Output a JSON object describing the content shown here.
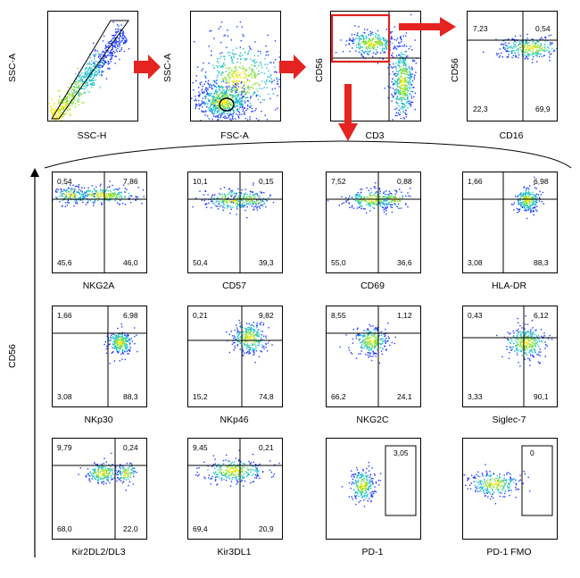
{
  "colors": {
    "density_low": "#1f3cff",
    "density_mid": "#22c3c9",
    "density_high": "#8ee03c",
    "density_peak": "#ffea00",
    "red_arrow": "#e52320",
    "gate_red": "#e02020"
  },
  "top_row": [
    {
      "xlabel": "SSC-H",
      "ylabel": "SSC-A"
    },
    {
      "xlabel": "FSC-A",
      "ylabel": "SSC-A"
    },
    {
      "xlabel": "CD3",
      "ylabel": "CD56"
    },
    {
      "xlabel": "CD16",
      "ylabel": "CD56",
      "quadrants": [
        "7,23",
        "0,54",
        "22,3",
        "69,9"
      ]
    }
  ],
  "left_axis_label": "CD56",
  "panels": [
    {
      "xlabel": "NKG2A",
      "quadrants": [
        "0,54",
        "7,86",
        "45,6",
        "46,0"
      ]
    },
    {
      "xlabel": "CD57",
      "quadrants": [
        "10,1",
        "0,15",
        "50,4",
        "39,3"
      ]
    },
    {
      "xlabel": "CD69",
      "quadrants": [
        "7,52",
        "0,88",
        "55,0",
        "36,6"
      ]
    },
    {
      "xlabel": "HLA-DR",
      "quadrants": [
        "1,66",
        "6,98",
        "3,08",
        "88,3"
      ]
    },
    {
      "xlabel": "NKp30",
      "quadrants": [
        "1,66",
        "6,98",
        "3,08",
        "88,3"
      ]
    },
    {
      "xlabel": "NKp46",
      "quadrants": [
        "0,21",
        "9,82",
        "15,2",
        "74,8"
      ]
    },
    {
      "xlabel": "NKG2C",
      "quadrants": [
        "8,55",
        "1,12",
        "66,2",
        "24,1"
      ]
    },
    {
      "xlabel": "Siglec-7",
      "quadrants": [
        "0,43",
        "6,12",
        "3,33",
        "90,1"
      ]
    },
    {
      "xlabel": "Kir2DL2/DL3",
      "quadrants": [
        "9,79",
        "0,24",
        "68,0",
        "22,0"
      ]
    },
    {
      "xlabel": "Kir3DL1",
      "quadrants": [
        "9,45",
        "0,21",
        "69,4",
        "20,9"
      ]
    },
    {
      "xlabel": "PD-1",
      "gate_value": "3,05"
    },
    {
      "xlabel": "PD-1 FMO",
      "gate_value": "0"
    }
  ]
}
